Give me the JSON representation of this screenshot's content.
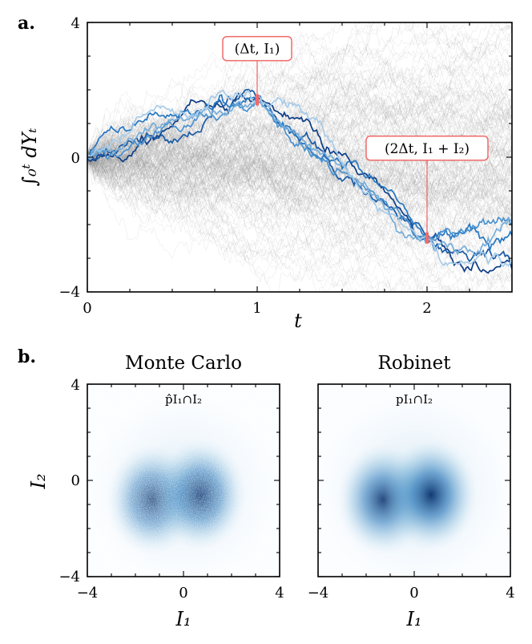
{
  "panels": {
    "a": "a.",
    "b": "b."
  },
  "colors": {
    "gray_paths": "#8c8c8c",
    "blue_paths": [
      "#0d3d86",
      "#1a5aa6",
      "#2677c2",
      "#4a92d0",
      "#75add9",
      "#a6cbe8"
    ],
    "annotation": "#f06a6a",
    "density": "#08306b"
  },
  "chart_data": [
    {
      "type": "line",
      "panel": "a",
      "xlabel": "t",
      "ylabel": "∫₀ᵗ dYₜ",
      "xlim": [
        0,
        2.5
      ],
      "ylim": [
        -4,
        4
      ],
      "xticks": [
        "0",
        "1",
        "2"
      ],
      "yticks": [
        "4",
        "0",
        "−4"
      ],
      "annotations": [
        {
          "text": "(Δt, I₁)",
          "x": 1,
          "y": 1.7
        },
        {
          "text": "(2Δt, I₁ + I₂)",
          "x": 2,
          "y": -2.4
        }
      ],
      "gray_path_count": 200,
      "conditioned_path_count": 6,
      "grid": false
    },
    {
      "type": "heatmap",
      "panel": "b-left",
      "title": "Monte Carlo",
      "inner_label": "p̂I₁∩I₂",
      "xlabel": "I₁",
      "ylabel": "I₂",
      "xlim": [
        -4,
        4
      ],
      "ylim": [
        -4,
        4
      ],
      "xticks": [
        "−4",
        "0",
        "4"
      ],
      "yticks": [
        "4",
        "0",
        "−4"
      ],
      "modes": [
        {
          "x": -1.3,
          "y": -0.8,
          "weight": 0.9
        },
        {
          "x": 0.7,
          "y": -0.6,
          "weight": 1.0
        }
      ]
    },
    {
      "type": "heatmap",
      "panel": "b-right",
      "title": "Robinet",
      "inner_label": "pI₁∩I₂",
      "xlabel": "I₁",
      "xlim": [
        -4,
        4
      ],
      "ylim": [
        -4,
        4
      ],
      "xticks": [
        "−4",
        "0",
        "4"
      ],
      "modes": [
        {
          "x": -1.3,
          "y": -0.8,
          "weight": 0.9
        },
        {
          "x": 0.7,
          "y": -0.6,
          "weight": 1.0
        }
      ]
    }
  ]
}
